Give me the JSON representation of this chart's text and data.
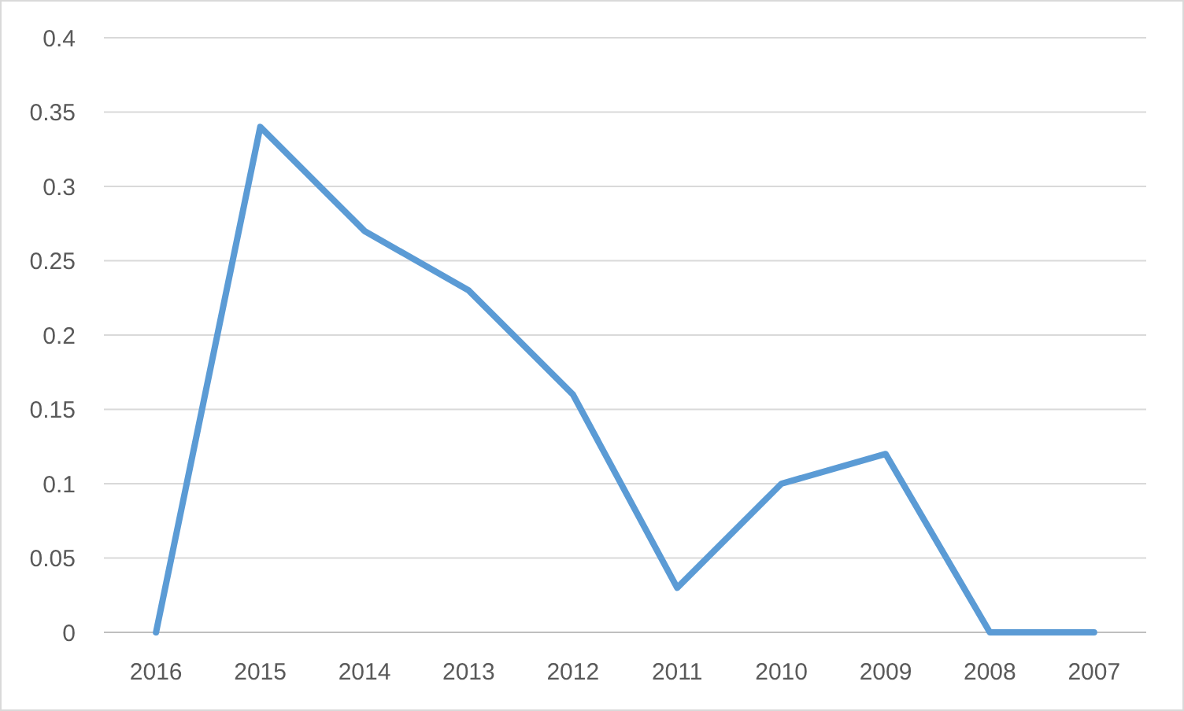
{
  "chart_data": {
    "type": "line",
    "categories": [
      "2016",
      "2015",
      "2014",
      "2013",
      "2012",
      "2011",
      "2010",
      "2009",
      "2008",
      "2007"
    ],
    "series": [
      {
        "color": "#5b9bd5",
        "values": [
          0,
          0.34,
          0.27,
          0.23,
          0.16,
          0.03,
          0.1,
          0.12,
          0,
          0
        ]
      }
    ],
    "ylim": [
      0,
      0.4
    ],
    "yticks": [
      0,
      0.05,
      0.1,
      0.15,
      0.2,
      0.25,
      0.3,
      0.35,
      0.4
    ],
    "grid": "y",
    "marker": "none",
    "line_style": "solid"
  }
}
